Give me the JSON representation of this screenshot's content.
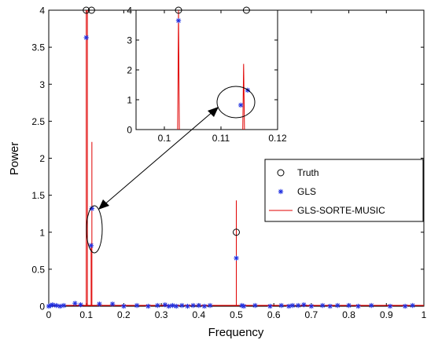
{
  "chart_data": [
    {
      "type": "scatter",
      "panel": "main",
      "xlabel": "Frequency",
      "ylabel": "Power",
      "xlim": [
        0,
        1
      ],
      "ylim": [
        0,
        4
      ],
      "xticks": [
        "0",
        "0.1",
        "0.2",
        "0.3",
        "0.4",
        "0.5",
        "0.6",
        "0.7",
        "0.8",
        "0.9",
        "1"
      ],
      "yticks": [
        "0",
        "0.5",
        "1",
        "1.5",
        "2",
        "2.5",
        "3",
        "3.5",
        "4"
      ],
      "grid": false,
      "legend_position": "right",
      "series": [
        {
          "name": "Truth",
          "marker": "circle",
          "color": "#000000",
          "points": [
            [
              0.1,
              4
            ],
            [
              0.114,
              4
            ],
            [
              0.5,
              1
            ]
          ]
        },
        {
          "name": "GLS",
          "marker": "asterisk",
          "color": "#1f2fe0",
          "points": [
            [
              0.1,
              3.63
            ],
            [
              0.113,
              0.82
            ],
            [
              0.115,
              1.32
            ],
            [
              0.5,
              0.65
            ],
            [
              0.0,
              0.0
            ],
            [
              0.005,
              0.01
            ],
            [
              0.01,
              0.02
            ],
            [
              0.02,
              0.01
            ],
            [
              0.03,
              0.0
            ],
            [
              0.04,
              0.01
            ],
            [
              0.07,
              0.04
            ],
            [
              0.085,
              0.02
            ],
            [
              0.135,
              0.03
            ],
            [
              0.17,
              0.03
            ],
            [
              0.2,
              0.0
            ],
            [
              0.235,
              0.01
            ],
            [
              0.265,
              0.0
            ],
            [
              0.29,
              0.01
            ],
            [
              0.31,
              0.02
            ],
            [
              0.32,
              0.0
            ],
            [
              0.33,
              0.01
            ],
            [
              0.34,
              0.0
            ],
            [
              0.355,
              0.01
            ],
            [
              0.37,
              0.0
            ],
            [
              0.385,
              0.01
            ],
            [
              0.4,
              0.01
            ],
            [
              0.415,
              0.0
            ],
            [
              0.43,
              0.01
            ],
            [
              0.515,
              0.01
            ],
            [
              0.52,
              0.0
            ],
            [
              0.55,
              0.01
            ],
            [
              0.59,
              0.0
            ],
            [
              0.62,
              0.01
            ],
            [
              0.64,
              0.0
            ],
            [
              0.65,
              0.01
            ],
            [
              0.665,
              0.01
            ],
            [
              0.68,
              0.02
            ],
            [
              0.7,
              0.0
            ],
            [
              0.73,
              0.01
            ],
            [
              0.75,
              0.0
            ],
            [
              0.77,
              0.01
            ],
            [
              0.8,
              0.01
            ],
            [
              0.825,
              0.0
            ],
            [
              0.86,
              0.01
            ],
            [
              0.91,
              0.0
            ],
            [
              0.95,
              0.0
            ],
            [
              0.97,
              0.01
            ]
          ]
        },
        {
          "name": "GLS-SORTE-MUSIC",
          "marker": "stem",
          "color": "#e00000",
          "points": [
            [
              0.1,
              4
            ],
            [
              0.103,
              4
            ],
            [
              0.113,
              0.8
            ],
            [
              0.115,
              2.22
            ],
            [
              0.5,
              1.43
            ]
          ]
        }
      ]
    },
    {
      "type": "scatter",
      "panel": "inset",
      "xlim": [
        0.095,
        0.12
      ],
      "ylim": [
        0,
        4
      ],
      "xticks": [
        "0.1",
        "0.11",
        "0.12"
      ],
      "yticks": [
        "0",
        "1",
        "2",
        "3",
        "4"
      ],
      "series": [
        {
          "name": "Truth",
          "marker": "circle",
          "color": "#000000",
          "points": [
            [
              0.1025,
              4
            ],
            [
              0.1145,
              4
            ]
          ]
        },
        {
          "name": "GLS",
          "marker": "asterisk",
          "color": "#1f2fe0",
          "points": [
            [
              0.1025,
              3.65
            ],
            [
              0.1135,
              0.82
            ],
            [
              0.1147,
              1.32
            ]
          ]
        },
        {
          "name": "GLS-SORTE-MUSIC",
          "marker": "spike",
          "color": "#e00000",
          "points": [
            [
              0.1025,
              4
            ],
            [
              0.114,
              2.2
            ]
          ]
        }
      ]
    }
  ]
}
